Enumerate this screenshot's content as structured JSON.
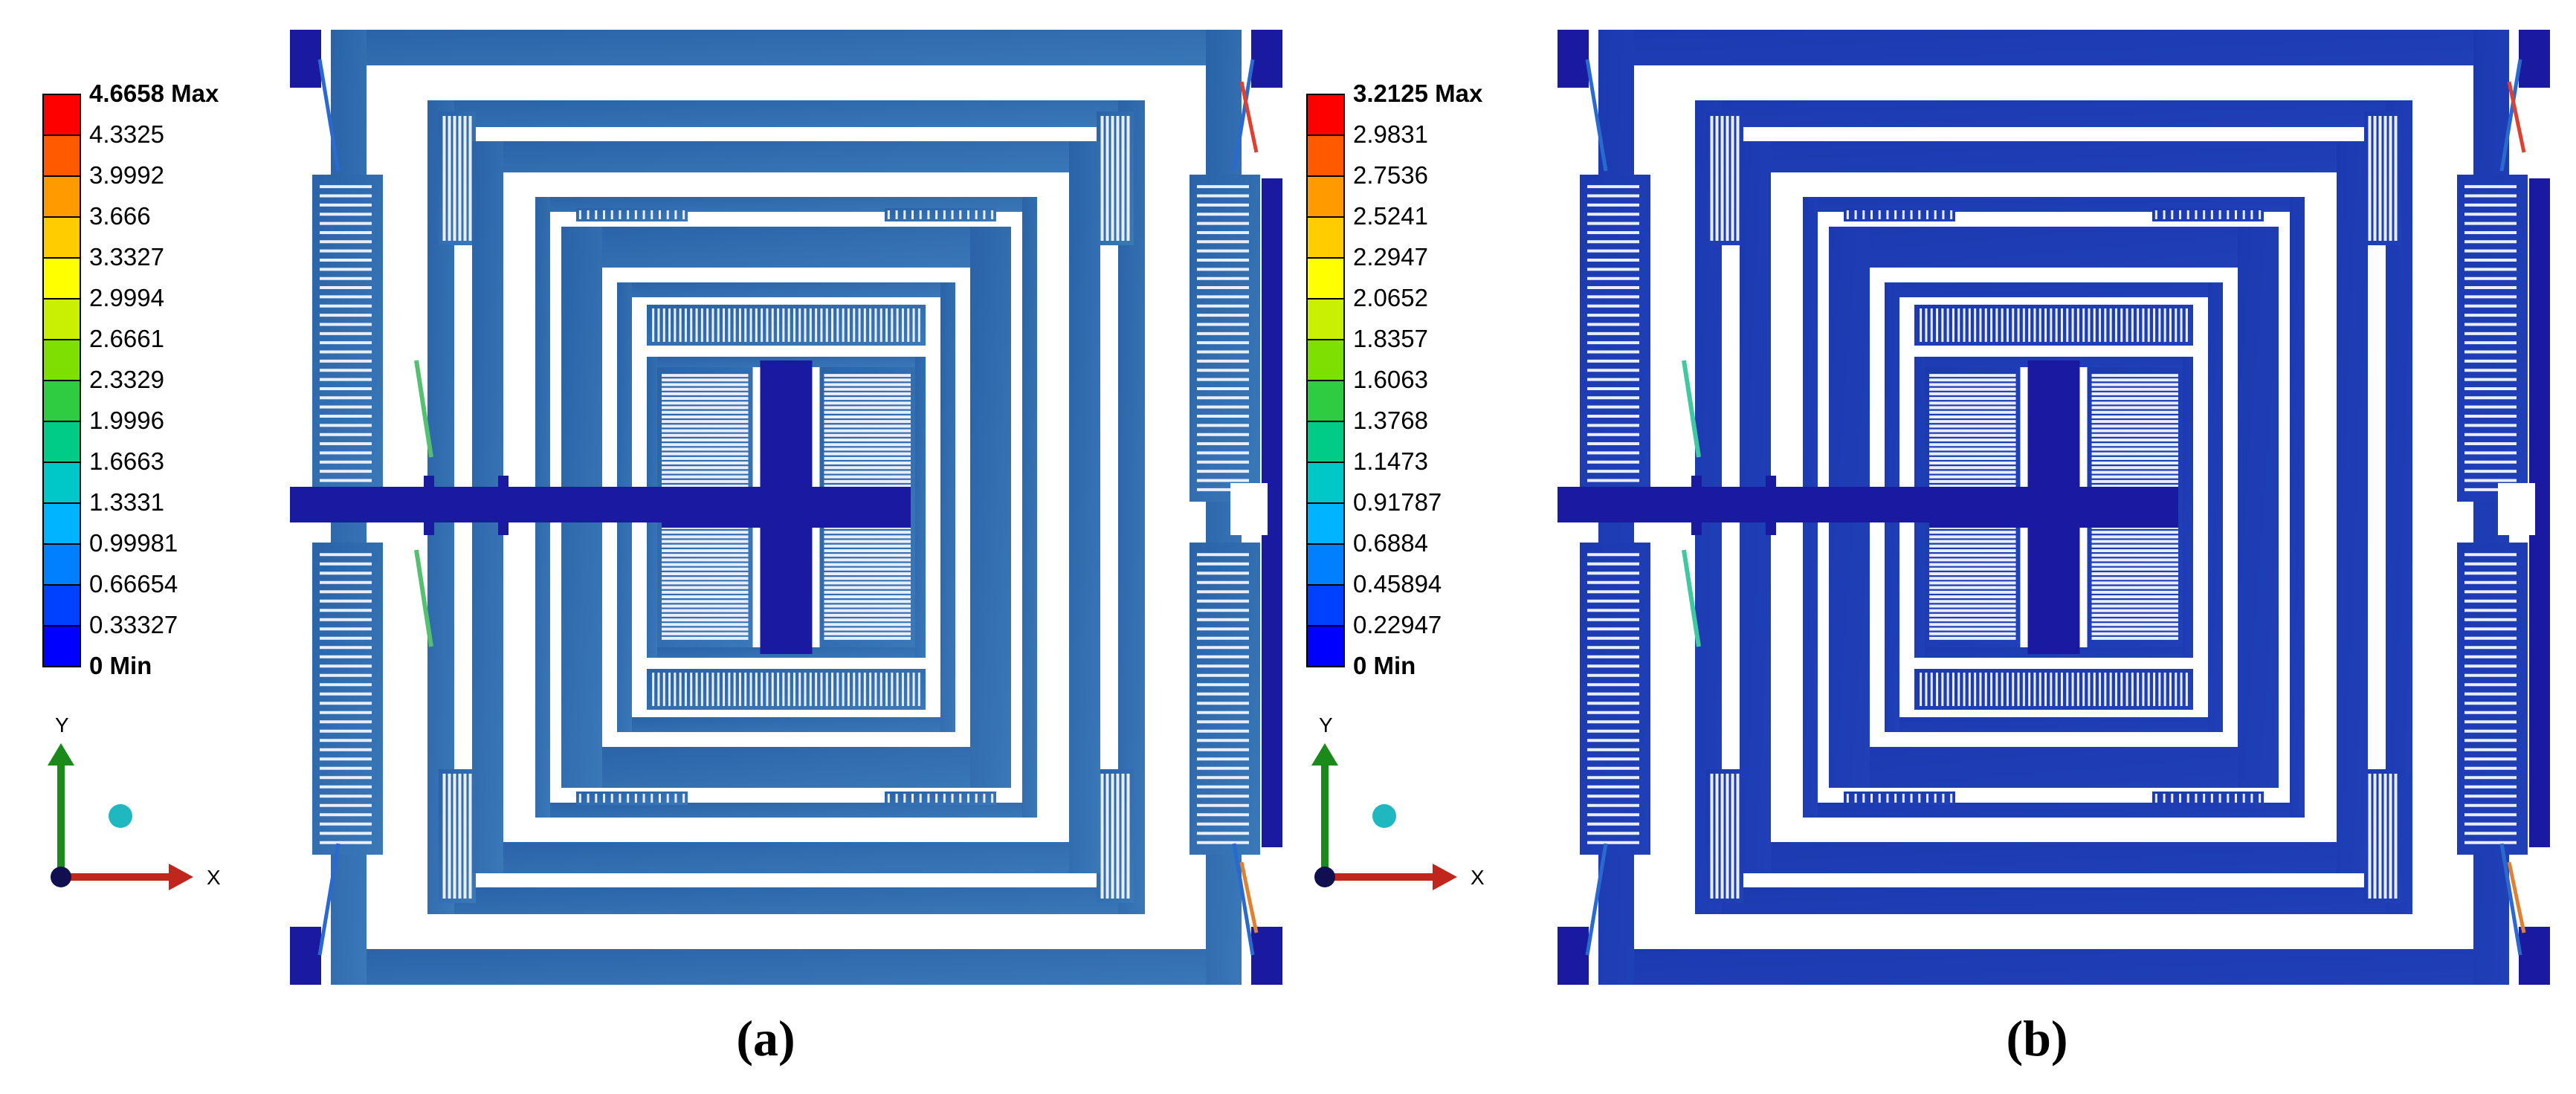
{
  "panels": [
    {
      "id": "a",
      "caption": "(a)",
      "legend": {
        "values": [
          "4.6658 Max",
          "4.3325",
          "3.9992",
          "3.666",
          "3.3327",
          "2.9994",
          "2.6661",
          "2.3329",
          "1.9996",
          "1.6663",
          "1.3331",
          "0.99981",
          "0.66654",
          "0.33327",
          "0 Min"
        ]
      },
      "axes": {
        "y_label": "Y",
        "x_label": "X"
      },
      "body_color": "#2a63a8"
    },
    {
      "id": "b",
      "caption": "(b)",
      "legend": {
        "values": [
          "3.2125 Max",
          "2.9831",
          "2.7536",
          "2.5241",
          "2.2947",
          "2.0652",
          "1.8357",
          "1.6063",
          "1.3768",
          "1.1473",
          "0.91787",
          "0.6884",
          "0.45894",
          "0.22947",
          "0 Min"
        ]
      },
      "axes": {
        "y_label": "Y",
        "x_label": "X"
      },
      "body_color": "#1c3ab0"
    }
  ],
  "colors": {
    "scale": [
      "#ff0000",
      "#ff5a00",
      "#ff9a00",
      "#ffcc00",
      "#ffff00",
      "#c8f000",
      "#7ee000",
      "#2ecc40",
      "#00cc88",
      "#00c8c8",
      "#00b4ff",
      "#0080ff",
      "#0040ff",
      "#0000ff"
    ],
    "dark_blue": "#1a1aa0",
    "axis_y": "#1a8a1a",
    "axis_x": "#c0261c",
    "dot": "#20b8c0"
  }
}
